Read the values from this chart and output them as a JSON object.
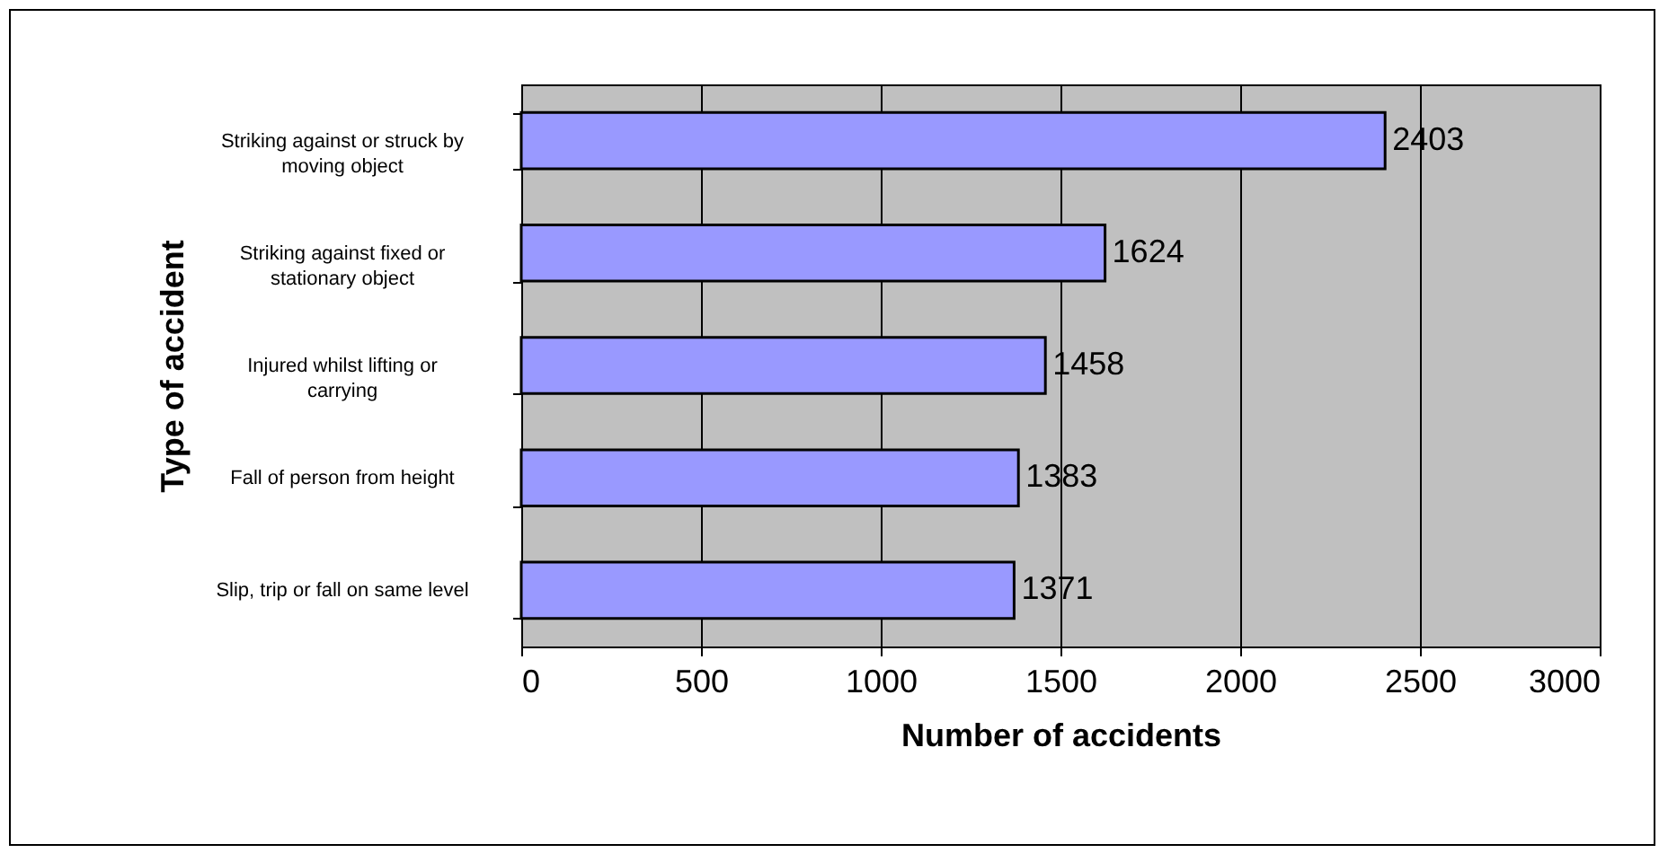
{
  "chart_data": {
    "type": "bar",
    "orientation": "horizontal",
    "xlabel": "Number of accidents",
    "ylabel": "Type of accident",
    "categories": [
      "Striking against or struck by moving object",
      "Striking against fixed or stationary object",
      "Injured whilst lifting or carrying",
      "Fall of person from height",
      "Slip, trip or fall on same level"
    ],
    "values": [
      2403,
      1624,
      1458,
      1383,
      1371
    ],
    "color": "#9999ff",
    "xlim": [
      0,
      3000
    ],
    "xticks": [
      0,
      500,
      1000,
      1500,
      2000,
      2500,
      3000
    ],
    "grid": "x",
    "data_labels": true
  }
}
